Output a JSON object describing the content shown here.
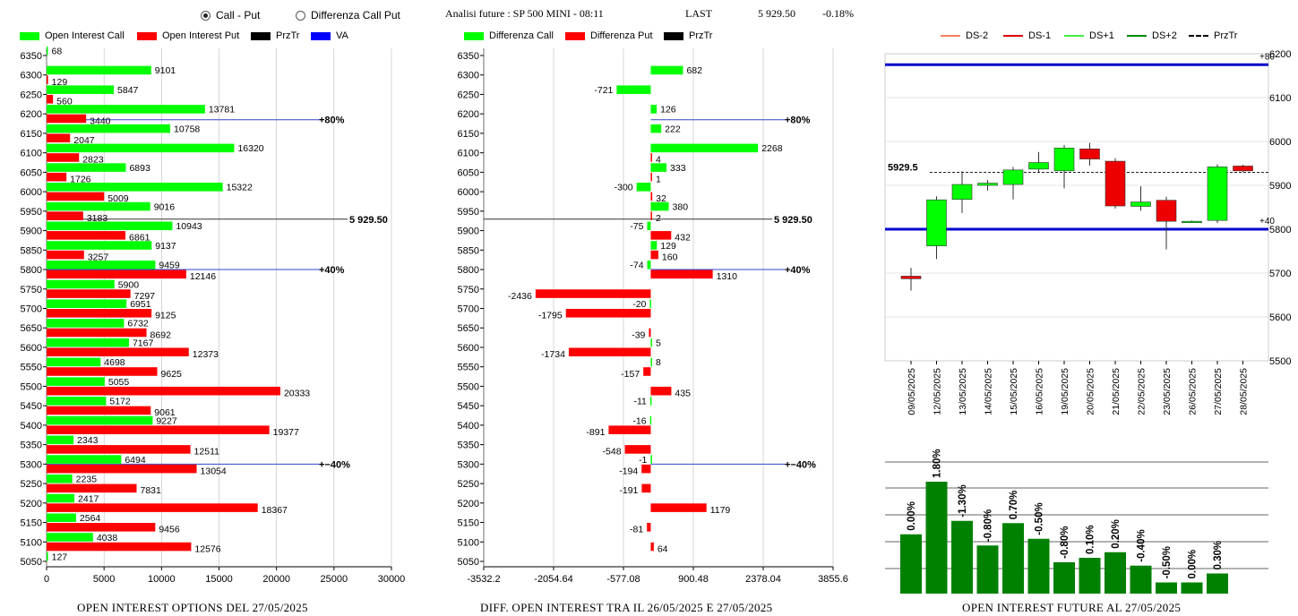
{
  "toggle": {
    "call_put_label": "Call - Put",
    "differenza_label": "Differenza Call Put",
    "selected": "Call - Put"
  },
  "header": {
    "analisi": "Analisi future : SP 500 MINI - 08:11",
    "last_label": "LAST",
    "last_value": "5 929.50",
    "change": "-0.18%"
  },
  "legend_left": [
    {
      "label": "Open Interest Call",
      "color": "#00ff00"
    },
    {
      "label": "Open Interest Put",
      "color": "#ff0000"
    },
    {
      "label": "PrzTr",
      "color": "#000000"
    },
    {
      "label": "VA",
      "color": "#0000ff"
    }
  ],
  "legend_mid": [
    {
      "label": "Differenza Call",
      "color": "#00ff00"
    },
    {
      "label": "Differenza Put",
      "color": "#ff0000"
    },
    {
      "label": "PrzTr",
      "color": "#000000"
    }
  ],
  "legend_right": [
    {
      "label": "DS-2",
      "color": "#ff8060",
      "style": "solid"
    },
    {
      "label": "DS-1",
      "color": "#dd0000",
      "style": "solid"
    },
    {
      "label": "DS+1",
      "color": "#44ee44",
      "style": "solid"
    },
    {
      "label": "DS+2",
      "color": "#008800",
      "style": "solid"
    },
    {
      "label": "PrzTr",
      "color": "#000000",
      "style": "dashed"
    }
  ],
  "footers": {
    "left": "OPEN INTEREST OPTIONS DEL 27/05/2025",
    "mid": "DIFF. OPEN INTEREST TRA IL 26/05/2025 E 27/05/2025",
    "right": "OPEN INTEREST FUTURE AL 27/05/2025"
  },
  "chart_data": [
    {
      "type": "bar",
      "orientation": "horizontal",
      "strikes": [
        6350,
        6300,
        6250,
        6200,
        6150,
        6100,
        6050,
        6000,
        5950,
        5900,
        5850,
        5800,
        5750,
        5700,
        5650,
        5600,
        5550,
        5500,
        5450,
        5400,
        5350,
        5300,
        5250,
        5200,
        5150,
        5100,
        5050
      ],
      "series": [
        {
          "name": "Open Interest Call",
          "values": [
            68,
            9101,
            5847,
            13781,
            10758,
            16320,
            6893,
            15322,
            9016,
            10943,
            9137,
            9459,
            5900,
            6951,
            6732,
            7167,
            4698,
            5055,
            5172,
            9227,
            2343,
            6494,
            2235,
            2417,
            2564,
            4038,
            127
          ]
        },
        {
          "name": "Open Interest Put",
          "values": [
            null,
            129,
            560,
            3440,
            2047,
            2823,
            1726,
            5009,
            3183,
            6861,
            3257,
            12146,
            7297,
            9125,
            8692,
            12373,
            9625,
            20333,
            9061,
            19377,
            12511,
            13054,
            7831,
            18367,
            9456,
            12576,
            null
          ]
        }
      ],
      "xlim": [
        0,
        30000
      ],
      "xticks": [
        "0",
        "5000",
        "10000",
        "15000",
        "20000",
        "25000",
        "30000"
      ],
      "yticks": [
        "6350",
        "6300",
        "6250",
        "6200",
        "6150",
        "6100",
        "6050",
        "6000",
        "5950",
        "5900",
        "5850",
        "5800",
        "5750",
        "5700",
        "5650",
        "5600",
        "5550",
        "5500",
        "5450",
        "5400",
        "5350",
        "5300",
        "5250",
        "5200",
        "5150",
        "5100",
        "5050"
      ],
      "price_line": {
        "value": 5929.5,
        "label": "5 929.50"
      },
      "levels": [
        {
          "value": 6185,
          "label": "80%"
        },
        {
          "value": 5800,
          "label": "40%"
        },
        {
          "value": 5300,
          "label": "-40%"
        }
      ]
    },
    {
      "type": "bar",
      "orientation": "horizontal",
      "strikes": [
        6350,
        6300,
        6250,
        6200,
        6150,
        6100,
        6050,
        6000,
        5950,
        5900,
        5850,
        5800,
        5750,
        5700,
        5650,
        5600,
        5550,
        5500,
        5450,
        5400,
        5350,
        5300,
        5250,
        5200,
        5150,
        5100,
        5050
      ],
      "series": [
        {
          "name": "Differenza Call",
          "values": [
            null,
            682,
            -721,
            126,
            222,
            2268,
            333,
            -300,
            380,
            -75,
            129,
            -74,
            null,
            -20,
            null,
            5,
            8,
            null,
            -11,
            -16,
            null,
            -1,
            null,
            null,
            null,
            null,
            null
          ]
        },
        {
          "name": "Differenza Put",
          "values": [
            null,
            null,
            null,
            null,
            null,
            4,
            1,
            32,
            2,
            432,
            160,
            1310,
            -2436,
            -1795,
            -39,
            -1734,
            -157,
            435,
            null,
            -891,
            -548,
            -194,
            -191,
            1179,
            -81,
            64,
            null
          ]
        }
      ],
      "xlim": [
        -3532.2,
        3855.6
      ],
      "xticks": [
        "-3532.2",
        "-2054.64",
        "-577.08",
        "900.48",
        "2378.04",
        "3855.6"
      ],
      "yticks": [
        "6350",
        "6300",
        "6250",
        "6200",
        "6150",
        "6100",
        "6050",
        "6000",
        "5950",
        "5900",
        "5850",
        "5800",
        "5750",
        "5700",
        "5650",
        "5600",
        "5550",
        "5500",
        "5450",
        "5400",
        "5350",
        "5300",
        "5250",
        "5200",
        "5150",
        "5100",
        "5050"
      ],
      "price_line": {
        "value": 5929.5,
        "label": "5 929.50"
      },
      "levels": [
        {
          "value": 6185,
          "label": "80%"
        },
        {
          "value": 5800,
          "label": "40%"
        },
        {
          "value": 5300,
          "label": "-40%"
        }
      ]
    },
    {
      "type": "candlestick",
      "dates": [
        "09/05/2025",
        "12/05/2025",
        "13/05/2025",
        "14/05/2025",
        "15/05/2025",
        "16/05/2025",
        "19/05/2025",
        "20/05/2025",
        "21/05/2025",
        "22/05/2025",
        "23/05/2025",
        "26/05/2025",
        "27/05/2025",
        "28/05/2025"
      ],
      "candles": [
        {
          "o": 5693,
          "h": 5712,
          "l": 5660,
          "c": 5687
        },
        {
          "o": 5762,
          "h": 5875,
          "l": 5732,
          "c": 5867
        },
        {
          "o": 5868,
          "h": 5932,
          "l": 5837,
          "c": 5902
        },
        {
          "o": 5900,
          "h": 5912,
          "l": 5888,
          "c": 5905
        },
        {
          "o": 5902,
          "h": 5942,
          "l": 5868,
          "c": 5935
        },
        {
          "o": 5937,
          "h": 5976,
          "l": 5930,
          "c": 5952
        },
        {
          "o": 5933,
          "h": 5992,
          "l": 5893,
          "c": 5985
        },
        {
          "o": 5983,
          "h": 5997,
          "l": 5945,
          "c": 5960
        },
        {
          "o": 5955,
          "h": 5962,
          "l": 5847,
          "c": 5853
        },
        {
          "o": 5852,
          "h": 5898,
          "l": 5842,
          "c": 5862
        },
        {
          "o": 5866,
          "h": 5874,
          "l": 5754,
          "c": 5818
        },
        {
          "o": 5818,
          "h": 5820,
          "l": 5816,
          "c": 5818
        },
        {
          "o": 5820,
          "h": 5948,
          "l": 5814,
          "c": 5942
        },
        {
          "o": 5944,
          "h": 5947,
          "l": 5930,
          "c": 5933
        }
      ],
      "ylim": [
        5500,
        6200
      ],
      "yticks": [
        "5500",
        "5600",
        "5700",
        "5800",
        "5900",
        "6000",
        "6100",
        "6200"
      ],
      "price_line": {
        "value": 5929.5,
        "label": "5929.5"
      },
      "bands": [
        {
          "value": 6175,
          "label": "+80"
        },
        {
          "value": 5800,
          "label": "+40"
        }
      ]
    },
    {
      "type": "bar",
      "categories": [
        "09/05/2025",
        "12/05/2025",
        "13/05/2025",
        "14/05/2025",
        "15/05/2025",
        "16/05/2025",
        "19/05/2025",
        "20/05/2025",
        "21/05/2025",
        "22/05/2025",
        "23/05/2025",
        "26/05/2025",
        "27/05/2025"
      ],
      "values": [
        0.0,
        1.8,
        -1.3,
        -0.8,
        0.7,
        -0.5,
        -0.8,
        0.1,
        0.2,
        -0.4,
        -0.5,
        0.0,
        0.3
      ],
      "labels": [
        "0.00%",
        "1.80%",
        "-1.30%",
        "-0.80%",
        "0.70%",
        "-0.50%",
        "-0.80%",
        "0.10%",
        "0.20%",
        "-0.40%",
        "-0.50%",
        "0.00%",
        "0.30%"
      ],
      "relative_heights": [
        0.53,
        1.0,
        0.65,
        0.43,
        0.63,
        0.49,
        0.28,
        0.32,
        0.37,
        0.25,
        0.1,
        0.1,
        0.18
      ]
    }
  ]
}
